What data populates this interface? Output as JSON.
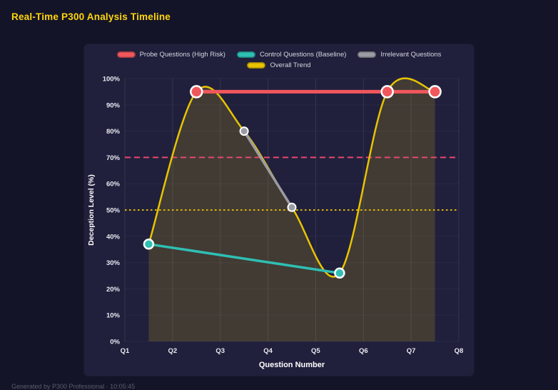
{
  "page": {
    "title": "Real-Time P300 Analysis Timeline",
    "footer": "Generated by P300 Professional · 10:05:45"
  },
  "chart_data": {
    "type": "line",
    "title": "Real-Time P300 Analysis Timeline",
    "xlabel": "Question Number",
    "ylabel": "Deception Level (%)",
    "x_ticks": [
      "Q1",
      "Q2",
      "Q3",
      "Q4",
      "Q5",
      "Q6",
      "Q7",
      "Q8"
    ],
    "ylim": [
      0,
      100
    ],
    "y_tick_step": 10,
    "y_tick_suffix": "%",
    "grid": "vertical-prominent",
    "legend_position": "top-center",
    "fill_color": "rgba(233,196,20,0.17)",
    "series": [
      {
        "name": "Probe Questions (High Risk)",
        "color": "#f0575c",
        "x": [
          2.5,
          6.5,
          7.5
        ],
        "values": [
          95,
          95,
          95
        ],
        "line_width": 5,
        "marker_radius": 8
      },
      {
        "name": "Control Questions (Baseline)",
        "color": "#2fbfb3",
        "x": [
          1.5,
          5.5
        ],
        "values": [
          37,
          26
        ],
        "line_width": 3.5,
        "marker_radius": 6.5
      },
      {
        "name": "Irrelevant Questions",
        "color": "#9b9ba3",
        "x": [
          3.5,
          4.5
        ],
        "values": [
          80,
          51
        ],
        "line_width": 3.5,
        "marker_radius": 5.5
      },
      {
        "name": "Overall Trend",
        "color": "#e8c400",
        "x": [
          1.5,
          2.5,
          3.5,
          4.5,
          5.5,
          6.5,
          7.5
        ],
        "values": [
          37,
          95,
          80,
          51,
          26,
          95,
          95
        ],
        "line_width": 2.5,
        "smooth": true,
        "fill": true
      }
    ],
    "thresholds": [
      {
        "value": 70,
        "color": "#e8476b",
        "style": "dashed"
      },
      {
        "value": 50,
        "color": "#e0b400",
        "style": "dotted"
      }
    ]
  }
}
